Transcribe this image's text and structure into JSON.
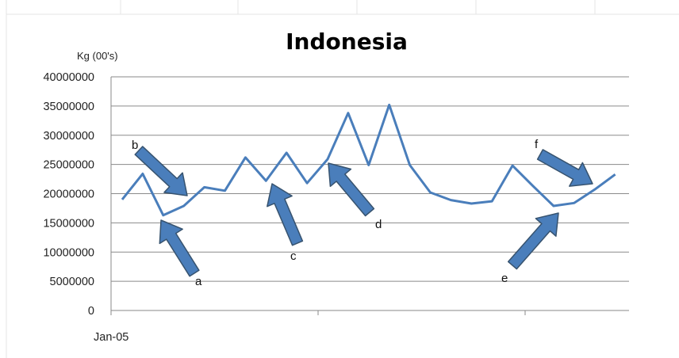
{
  "chart_data": {
    "type": "line",
    "title": "Indonesia",
    "ylabel": "Kg (00's)",
    "xlabel": "",
    "ylim": [
      0,
      40000000
    ],
    "yticks": [
      "0",
      "5000000",
      "10000000",
      "15000000",
      "20000000",
      "25000000",
      "30000000",
      "35000000",
      "40000000"
    ],
    "x_tick_labels": [
      "Jan-05"
    ],
    "grid": "horizontal",
    "legend": "none",
    "series": [
      {
        "color": "#4a7ebb",
        "values": [
          19000000,
          23400000,
          16300000,
          17900000,
          21100000,
          20500000,
          26200000,
          22200000,
          27000000,
          21800000,
          25900000,
          33800000,
          24900000,
          35200000,
          24900000,
          20200000,
          18900000,
          18300000,
          18700000,
          24800000,
          21300000,
          17900000,
          18400000,
          20700000,
          23300000
        ]
      }
    ],
    "annotations": [
      {
        "label": "a",
        "color": "#4a7ebb"
      },
      {
        "label": "b",
        "color": "#4a7ebb"
      },
      {
        "label": "c",
        "color": "#4a7ebb"
      },
      {
        "label": "d",
        "color": "#4a7ebb"
      },
      {
        "label": "e",
        "color": "#4a7ebb"
      },
      {
        "label": "f",
        "color": "#4a7ebb"
      }
    ]
  }
}
